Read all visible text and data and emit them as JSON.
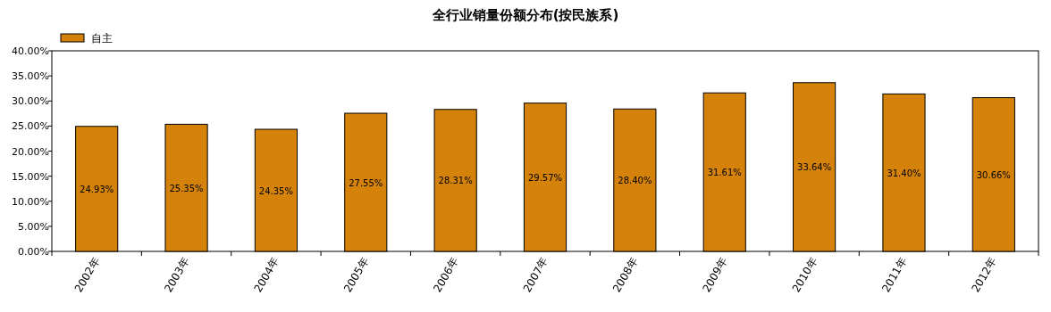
{
  "chart_data": {
    "type": "bar",
    "title": "全行业销量份额分布(按民族系)",
    "categories": [
      "2002年",
      "2003年",
      "2004年",
      "2005年",
      "2006年",
      "2007年",
      "2008年",
      "2009年",
      "2010年",
      "2011年",
      "2012年"
    ],
    "series": [
      {
        "name": "自主",
        "color": "#d4820a",
        "values": [
          24.93,
          25.35,
          24.35,
          27.55,
          28.31,
          29.57,
          28.4,
          31.61,
          33.64,
          31.4,
          30.66
        ],
        "value_labels": [
          "24.93%",
          "25.35%",
          "24.35%",
          "27.55%",
          "28.31%",
          "29.57%",
          "28.40%",
          "31.61%",
          "33.64%",
          "31.40%",
          "30.66%"
        ]
      }
    ],
    "ylim": [
      0,
      40
    ],
    "yticks": [
      {
        "value": 0,
        "label": "0.00%"
      },
      {
        "value": 5,
        "label": "5.00%"
      },
      {
        "value": 10,
        "label": "10.00%"
      },
      {
        "value": 15,
        "label": "15.00%"
      },
      {
        "value": 20,
        "label": "20.00%"
      },
      {
        "value": 25,
        "label": "25.00%"
      },
      {
        "value": 30,
        "label": "30.00%"
      },
      {
        "value": 35,
        "label": "35.00%"
      },
      {
        "value": 40,
        "label": "40.00%"
      }
    ],
    "legend": "top left"
  }
}
